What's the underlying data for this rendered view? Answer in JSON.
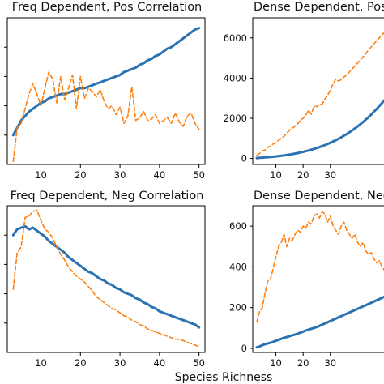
{
  "figure": {
    "xlabel": "Species Richness"
  },
  "style": {
    "solid_color": "#2a72b2",
    "dashed_color": "#ff7f0e"
  },
  "chart_data": [
    {
      "type": "line",
      "title": "Freq Dependent, Pos Correlation",
      "xlabel": "",
      "ylabel": "",
      "xlim": [
        1.5,
        51.5
      ],
      "ylim": [
        0,
        1
      ],
      "xticks": [
        10,
        20,
        30,
        40,
        50
      ],
      "yticks": [],
      "x": [
        3,
        4,
        5,
        6,
        7,
        8,
        9,
        10,
        11,
        12,
        13,
        14,
        15,
        16,
        17,
        18,
        19,
        20,
        21,
        22,
        23,
        24,
        25,
        26,
        27,
        28,
        29,
        30,
        31,
        32,
        33,
        34,
        35,
        36,
        37,
        38,
        39,
        40,
        41,
        42,
        43,
        44,
        45,
        46,
        47,
        48,
        49,
        50
      ],
      "series": [
        {
          "style": "solid",
          "values": [
            0.2,
            0.25,
            0.3,
            0.33,
            0.36,
            0.38,
            0.4,
            0.42,
            0.43,
            0.45,
            0.46,
            0.47,
            0.48,
            0.48,
            0.49,
            0.5,
            0.51,
            0.52,
            0.52,
            0.53,
            0.54,
            0.55,
            0.56,
            0.57,
            0.58,
            0.59,
            0.6,
            0.61,
            0.63,
            0.64,
            0.65,
            0.66,
            0.68,
            0.69,
            0.71,
            0.72,
            0.74,
            0.75,
            0.77,
            0.79,
            0.8,
            0.82,
            0.84,
            0.86,
            0.88,
            0.9,
            0.92,
            0.93
          ]
        },
        {
          "style": "dashed",
          "values": [
            0.02,
            0.25,
            0.28,
            0.38,
            0.48,
            0.55,
            0.48,
            0.4,
            0.52,
            0.63,
            0.58,
            0.42,
            0.6,
            0.44,
            0.52,
            0.61,
            0.38,
            0.6,
            0.45,
            0.52,
            0.5,
            0.46,
            0.51,
            0.43,
            0.38,
            0.4,
            0.34,
            0.39,
            0.28,
            0.33,
            0.53,
            0.3,
            0.32,
            0.36,
            0.3,
            0.31,
            0.34,
            0.28,
            0.3,
            0.32,
            0.28,
            0.35,
            0.29,
            0.26,
            0.33,
            0.35,
            0.28,
            0.24
          ]
        }
      ]
    },
    {
      "type": "line",
      "title": "Dense Dependent, Pos",
      "xlabel": "",
      "ylabel": "",
      "xlim": [
        1.5,
        51.5
      ],
      "ylim": [
        -300,
        7000
      ],
      "xticks": [
        10,
        20,
        30
      ],
      "yticks": [
        0,
        2000,
        4000,
        6000
      ],
      "x": [
        3,
        4,
        5,
        6,
        7,
        8,
        9,
        10,
        11,
        12,
        13,
        14,
        15,
        16,
        17,
        18,
        19,
        20,
        21,
        22,
        23,
        24,
        25,
        26,
        27,
        28,
        29,
        30,
        31,
        32,
        33,
        34,
        35,
        36,
        37,
        38,
        39,
        40,
        41,
        42,
        43,
        44,
        45,
        46,
        47,
        48,
        49,
        50
      ],
      "series": [
        {
          "style": "solid",
          "values": [
            20,
            30,
            40,
            50,
            60,
            70,
            85,
            100,
            115,
            130,
            150,
            170,
            190,
            215,
            240,
            265,
            295,
            325,
            360,
            395,
            435,
            475,
            520,
            565,
            615,
            665,
            720,
            780,
            840,
            905,
            975,
            1050,
            1130,
            1210,
            1300,
            1390,
            1490,
            1590,
            1700,
            1810,
            1930,
            2050,
            2180,
            2320,
            2460,
            2610,
            2760,
            2920
          ]
        },
        {
          "style": "dashed",
          "values": [
            150,
            250,
            380,
            420,
            560,
            600,
            720,
            780,
            900,
            1000,
            1100,
            1260,
            1400,
            1500,
            1600,
            1720,
            1900,
            2000,
            2150,
            2400,
            2200,
            2600,
            2580,
            2680,
            2700,
            2950,
            3150,
            3400,
            3700,
            3950,
            3850,
            3920,
            4050,
            4150,
            4300,
            4450,
            4600,
            4750,
            4900,
            5050,
            5200,
            5400,
            5550,
            5700,
            5850,
            6000,
            6150,
            6300
          ]
        }
      ]
    },
    {
      "type": "line",
      "title": "Freq Dependent, Neg Correlation",
      "xlabel": "",
      "ylabel": "",
      "xlim": [
        1.5,
        51.5
      ],
      "ylim": [
        0,
        1
      ],
      "xticks": [
        10,
        20,
        30,
        40,
        50
      ],
      "yticks": [],
      "x": [
        3,
        4,
        5,
        6,
        7,
        8,
        9,
        10,
        11,
        12,
        13,
        14,
        15,
        16,
        17,
        18,
        19,
        20,
        21,
        22,
        23,
        24,
        25,
        26,
        27,
        28,
        29,
        30,
        31,
        32,
        33,
        34,
        35,
        36,
        37,
        38,
        39,
        40,
        41,
        42,
        43,
        44,
        45,
        46,
        47,
        48,
        49,
        50
      ],
      "series": [
        {
          "style": "solid",
          "values": [
            0.8,
            0.84,
            0.85,
            0.86,
            0.84,
            0.85,
            0.83,
            0.81,
            0.79,
            0.76,
            0.74,
            0.72,
            0.7,
            0.68,
            0.65,
            0.63,
            0.61,
            0.59,
            0.57,
            0.55,
            0.54,
            0.52,
            0.5,
            0.49,
            0.47,
            0.46,
            0.44,
            0.43,
            0.41,
            0.4,
            0.39,
            0.37,
            0.36,
            0.34,
            0.33,
            0.31,
            0.3,
            0.28,
            0.27,
            0.26,
            0.25,
            0.24,
            0.23,
            0.22,
            0.21,
            0.2,
            0.19,
            0.17
          ]
        },
        {
          "style": "dashed",
          "values": [
            0.43,
            0.68,
            0.72,
            0.92,
            0.93,
            0.96,
            0.97,
            0.9,
            0.84,
            0.82,
            0.78,
            0.72,
            0.67,
            0.63,
            0.58,
            0.55,
            0.52,
            0.5,
            0.48,
            0.45,
            0.42,
            0.38,
            0.36,
            0.34,
            0.32,
            0.3,
            0.29,
            0.27,
            0.25,
            0.24,
            0.22,
            0.21,
            0.19,
            0.18,
            0.16,
            0.15,
            0.14,
            0.13,
            0.12,
            0.11,
            0.1,
            0.09,
            0.09,
            0.08,
            0.07,
            0.06,
            0.05,
            0.04
          ]
        }
      ]
    },
    {
      "type": "line",
      "title": "Dense Dependent, Neg",
      "xlabel": "",
      "ylabel": "",
      "xlim": [
        1.5,
        51.5
      ],
      "ylim": [
        -20,
        700
      ],
      "xticks": [
        10,
        20,
        30
      ],
      "yticks": [
        0,
        200,
        400,
        600
      ],
      "x": [
        3,
        4,
        5,
        6,
        7,
        8,
        9,
        10,
        11,
        12,
        13,
        14,
        15,
        16,
        17,
        18,
        19,
        20,
        21,
        22,
        23,
        24,
        25,
        26,
        27,
        28,
        29,
        30,
        31,
        32,
        33,
        34,
        35,
        36,
        37,
        38,
        39,
        40,
        41,
        42,
        43,
        44,
        45,
        46,
        47,
        48,
        49,
        50
      ],
      "series": [
        {
          "style": "solid",
          "values": [
            5,
            10,
            15,
            20,
            24,
            27,
            32,
            37,
            42,
            47,
            52,
            55,
            60,
            64,
            68,
            72,
            77,
            82,
            88,
            92,
            96,
            100,
            105,
            110,
            116,
            122,
            128,
            134,
            140,
            146,
            152,
            158,
            164,
            170,
            176,
            182,
            188,
            194,
            200,
            206,
            212,
            218,
            224,
            230,
            236,
            242,
            248,
            254
          ]
        },
        {
          "style": "dashed",
          "values": [
            130,
            180,
            200,
            270,
            330,
            340,
            390,
            450,
            500,
            520,
            560,
            500,
            540,
            530,
            560,
            580,
            570,
            600,
            590,
            620,
            610,
            650,
            660,
            640,
            670,
            660,
            620,
            650,
            600,
            580,
            560,
            600,
            620,
            580,
            560,
            540,
            560,
            520,
            500,
            520,
            480,
            460,
            470,
            440,
            420,
            430,
            400,
            380
          ]
        }
      ]
    }
  ]
}
